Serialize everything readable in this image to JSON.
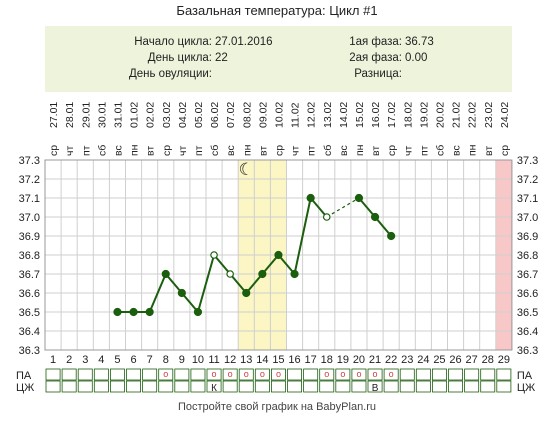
{
  "title": "Базальная температура: Цикл #1",
  "info": {
    "cycle_start_label": "Начало цикла:",
    "cycle_start_value": "27.01.2016",
    "cycle_day_label": "День цикла:",
    "cycle_day_value": "22",
    "ovulation_day_label": "День овуляции:",
    "ovulation_day_value": "",
    "phase1_label": "1ая фаза:",
    "phase1_value": "36.73",
    "phase2_label": "2ая фаза:",
    "phase2_value": "0.00",
    "diff_label": "Разница:",
    "diff_value": ""
  },
  "footer": "Постройте свой график на BabyPlan.ru",
  "chart_data": {
    "type": "line",
    "ylim": [
      36.3,
      37.3
    ],
    "y_ticks": [
      "36.3",
      "36.4",
      "36.5",
      "36.6",
      "36.7",
      "36.8",
      "36.9",
      "37.0",
      "37.1",
      "37.2",
      "37.3"
    ],
    "days": [
      "1",
      "2",
      "3",
      "4",
      "5",
      "6",
      "7",
      "8",
      "9",
      "10",
      "11",
      "12",
      "13",
      "14",
      "15",
      "16",
      "17",
      "18",
      "19",
      "20",
      "21",
      "22",
      "23",
      "24",
      "25",
      "26",
      "27",
      "28",
      "29"
    ],
    "weekdays": [
      "ср",
      "чт",
      "пт",
      "сб",
      "вс",
      "пн",
      "вт",
      "ср",
      "чт",
      "пт",
      "сб",
      "вс",
      "пн",
      "вт",
      "ср",
      "чт",
      "пт",
      "сб",
      "вс",
      "пн",
      "вт",
      "ср",
      "чт",
      "пт",
      "сб",
      "вс",
      "пн",
      "вт",
      "ср"
    ],
    "dates": [
      "27.01",
      "28.01",
      "29.01",
      "30.01",
      "31.01",
      "01.02",
      "02.02",
      "03.02",
      "04.02",
      "05.02",
      "06.02",
      "07.02",
      "08.02",
      "09.02",
      "10.02",
      "11.02",
      "12.02",
      "13.02",
      "14.02",
      "15.02",
      "16.02",
      "17.02",
      "18.02",
      "19.02",
      "20.02",
      "21.02",
      "22.02",
      "23.02",
      "24.02"
    ],
    "series": [
      {
        "values": [
          null,
          null,
          null,
          null,
          36.5,
          36.5,
          36.5,
          36.7,
          36.6,
          36.5,
          36.8,
          36.7,
          36.6,
          36.7,
          36.8,
          36.7,
          37.1,
          37.0,
          null,
          37.1,
          37.0,
          36.9,
          null,
          null,
          null,
          null,
          null,
          null,
          null
        ],
        "open_points": [
          11,
          12,
          18
        ],
        "dashed_segments": [
          [
            18,
            20
          ]
        ]
      }
    ],
    "highlight_days": [
      13,
      14,
      15
    ],
    "highlight_color": "#fbf6c4",
    "end_day": 29,
    "end_color": "#f8c8c8",
    "moon_day": 13,
    "line_color": "#1b5e0e",
    "rows": {
      "pa_label": "ПА",
      "czh_label": "ЦЖ",
      "pa_marks": [
        8,
        11,
        12,
        13,
        14,
        15,
        18,
        19,
        20,
        21,
        22
      ],
      "czh_marks": [
        {
          "day": 11,
          "text": "К"
        },
        {
          "day": 21,
          "text": "В"
        }
      ],
      "pa_symbol": "o"
    }
  }
}
